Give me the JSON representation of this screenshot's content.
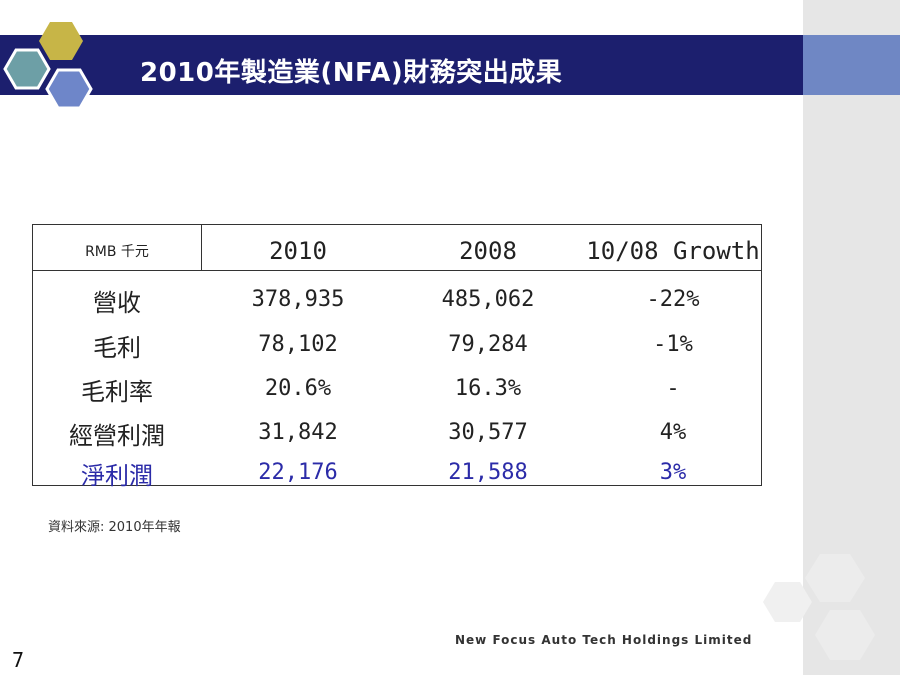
{
  "title": "2010年製造業(NFA)財務突出成果",
  "table": {
    "unit_label": "RMB 千元",
    "columns": [
      "2010",
      "2008",
      "10/08 Growth"
    ],
    "rows": [
      {
        "label": "營收",
        "values": [
          "378,935",
          "485,062",
          "-22%"
        ]
      },
      {
        "label": "毛利",
        "values": [
          "78,102",
          "79,284",
          "-1%"
        ]
      },
      {
        "label": "毛利率",
        "values": [
          "20.6%",
          "16.3%",
          "-"
        ]
      },
      {
        "label": "經營利潤",
        "values": [
          "31,842",
          "30,577",
          "4%"
        ]
      },
      {
        "label": "淨利潤",
        "values": [
          "22,176",
          "21,588",
          "3%"
        ]
      }
    ]
  },
  "source_note": "資料來源: 2010年年報",
  "company_name": "New Focus Auto Tech Holdings Limited",
  "page_number": "7",
  "colors": {
    "title_bar": "#1c1f6e",
    "right_band": "#6f87c4",
    "highlight_row": "#2b2ba8"
  }
}
